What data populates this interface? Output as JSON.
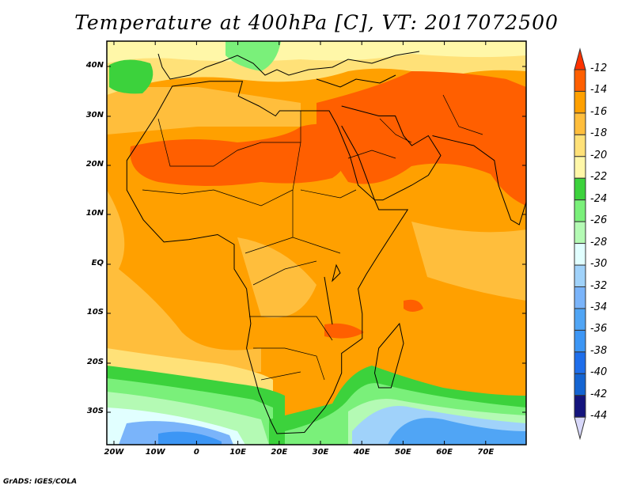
{
  "title": "Temperature at 400hPa [C], VT: 2017072500",
  "footer": "GrADS: IGES/COLA",
  "lat_labels": [
    "40N",
    "30N",
    "20N",
    "10N",
    "EQ",
    "10S",
    "20S",
    "30S"
  ],
  "lon_labels": [
    "20W",
    "10W",
    "0",
    "10E",
    "20E",
    "30E",
    "40E",
    "50E",
    "60E",
    "70E"
  ],
  "colorbar": {
    "levels": [
      "-12",
      "-14",
      "-16",
      "-18",
      "-20",
      "-22",
      "-24",
      "-26",
      "-28",
      "-30",
      "-32",
      "-34",
      "-36",
      "-38",
      "-40",
      "-42",
      "-44"
    ],
    "over_color": "#ff3200",
    "under_color": "#d8d8fa",
    "colors": [
      "#ff5f00",
      "#ffa000",
      "#ffbe3c",
      "#ffe178",
      "#fff7a8",
      "#3cd23c",
      "#7af07a",
      "#b4fab4",
      "#e1ffff",
      "#a0d2fa",
      "#7ab4fa",
      "#50a5f5",
      "#3c96f5",
      "#1e6eeb",
      "#1464d2",
      "#14147d"
    ]
  }
}
